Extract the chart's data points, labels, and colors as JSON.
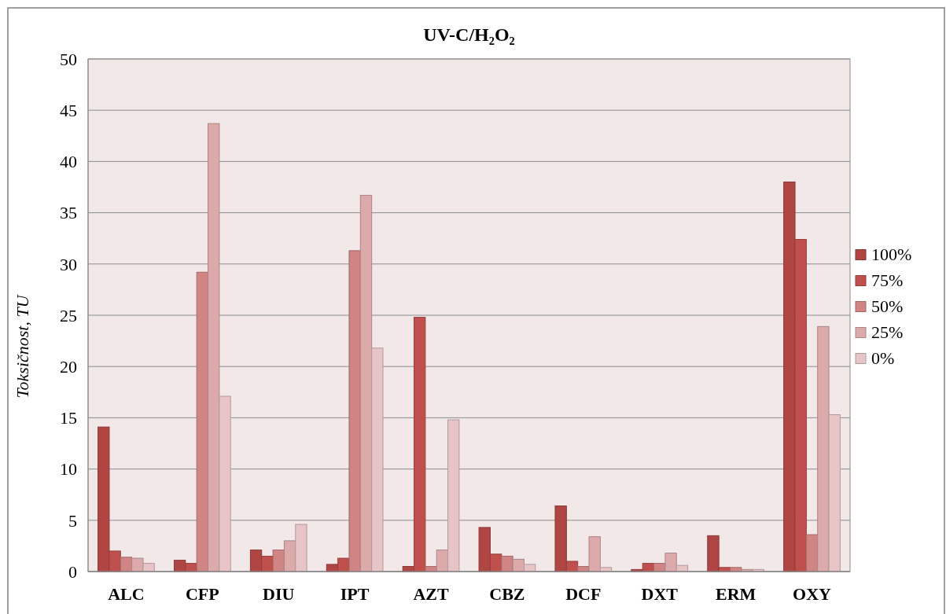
{
  "chart_data": {
    "type": "bar",
    "title": "UV-C/H₂O₂",
    "ylabel": "Toksičnost, TU",
    "categories": [
      "ALC",
      "CFP",
      "DIU",
      "IPT",
      "AZT",
      "CBZ",
      "DCF",
      "DXT",
      "ERM",
      "OXY"
    ],
    "series": [
      {
        "name": "100%",
        "color": "#b04644",
        "values": [
          14.1,
          1.1,
          2.1,
          0.7,
          0.5,
          4.3,
          6.4,
          0.2,
          3.5,
          38.0
        ]
      },
      {
        "name": "75%",
        "color": "#c0504d",
        "values": [
          2.0,
          0.8,
          1.5,
          1.3,
          24.8,
          1.7,
          1.0,
          0.8,
          0.4,
          32.4
        ]
      },
      {
        "name": "50%",
        "color": "#d08584",
        "values": [
          1.4,
          29.2,
          2.1,
          31.3,
          0.5,
          1.5,
          0.5,
          0.8,
          0.4,
          3.6
        ]
      },
      {
        "name": "25%",
        "color": "#ddaaab",
        "values": [
          1.3,
          43.7,
          3.0,
          36.7,
          2.1,
          1.2,
          3.4,
          1.8,
          0.2,
          23.9
        ]
      },
      {
        "name": "0%",
        "color": "#e7c5c7",
        "values": [
          0.8,
          17.1,
          4.6,
          21.8,
          14.8,
          0.7,
          0.4,
          0.6,
          0.2,
          15.3
        ]
      }
    ],
    "ylim": [
      0,
      50
    ],
    "yticks": [
      0,
      5,
      10,
      15,
      20,
      25,
      30,
      35,
      40,
      45,
      50
    ],
    "grid": "y",
    "legend": "right"
  }
}
